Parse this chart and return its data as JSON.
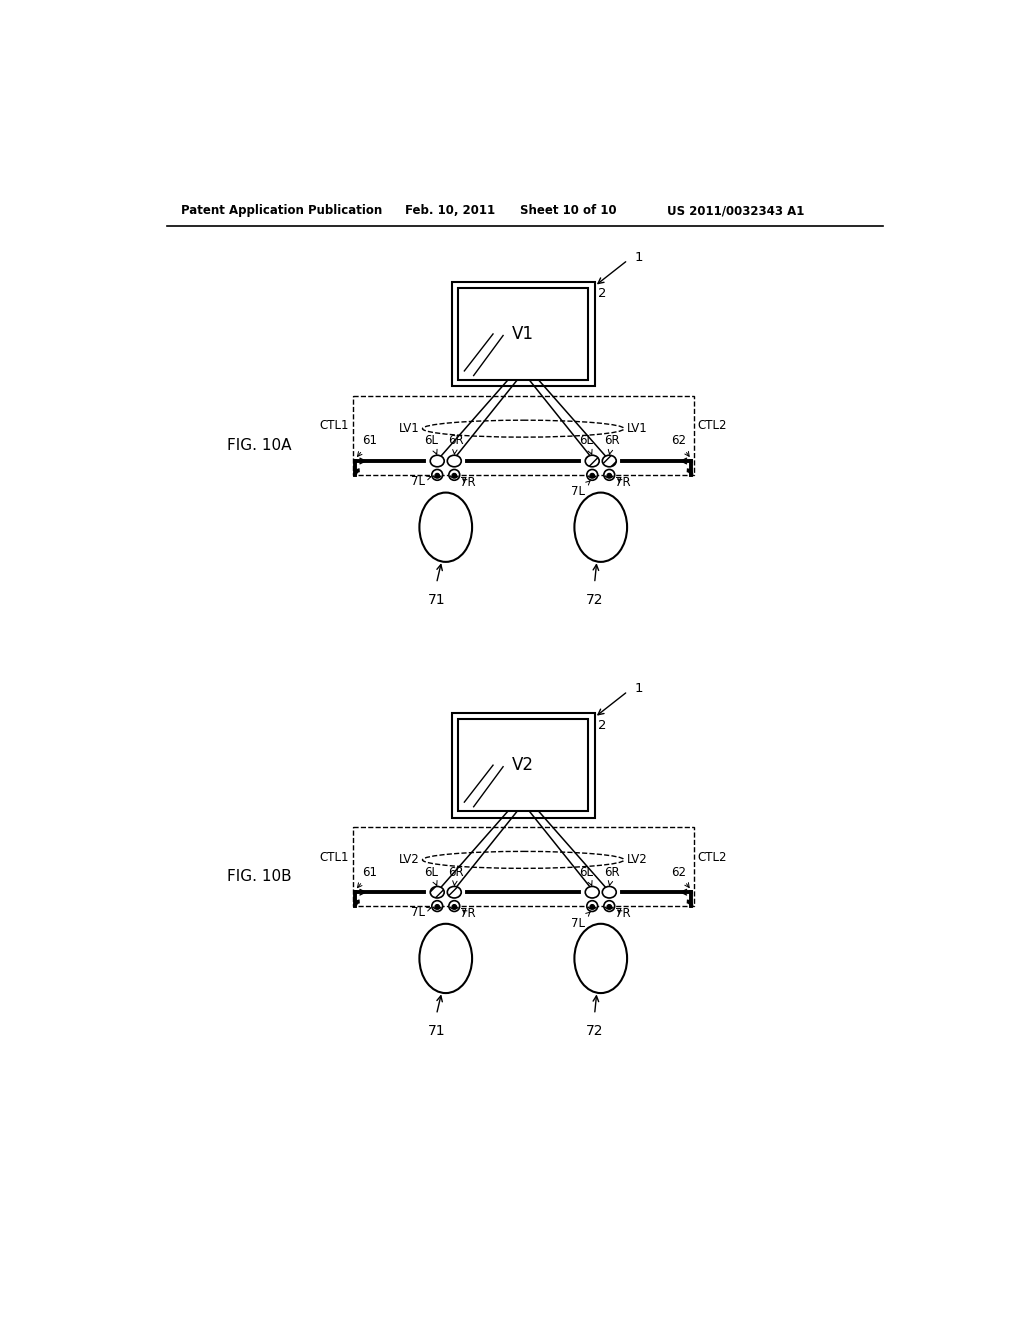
{
  "bg_color": "#ffffff",
  "header_text": "Patent Application Publication",
  "header_date": "Feb. 10, 2011",
  "header_sheet": "Sheet 10 of 10",
  "header_patent": "US 2011/0032343 A1",
  "fig_label_A": "FIG. 10A",
  "fig_label_B": "FIG. 10B",
  "diag_A_monitor": "V1",
  "diag_A_lv": "LV1",
  "diag_B_monitor": "V2",
  "diag_B_lv": "LV2",
  "ctl1": "CTL1",
  "ctl2": "CTL2"
}
